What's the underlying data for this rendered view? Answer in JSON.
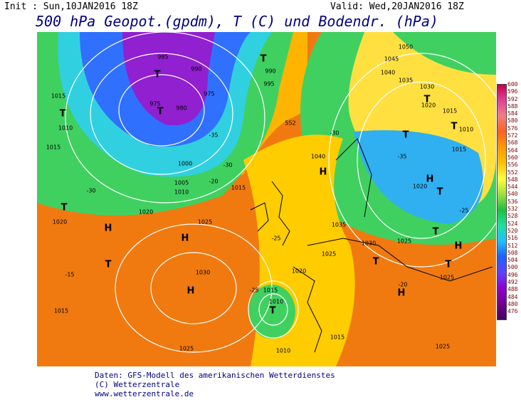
{
  "header": {
    "init": "Init : Sun,10JAN2016 18Z",
    "valid": "Valid: Wed,20JAN2016 18Z",
    "title": "500 hPa Geopot.(gpdm), T (C) und Bodendr. (hPa)"
  },
  "legend": {
    "levels": [
      600,
      596,
      592,
      588,
      584,
      580,
      576,
      572,
      568,
      564,
      560,
      556,
      552,
      548,
      544,
      540,
      536,
      532,
      528,
      524,
      520,
      516,
      512,
      508,
      504,
      500,
      496,
      492,
      488,
      484,
      480,
      476
    ]
  },
  "map": {
    "labels": [
      "1015",
      "T",
      "1010",
      "1015",
      "-30",
      "T",
      "1020",
      "H",
      "1020",
      "985",
      "T",
      "975",
      "T",
      "980",
      "990",
      "T",
      "990",
      "995",
      "975",
      "1000",
      "1005",
      "1010",
      "1015",
      "1025",
      "H",
      "1030",
      "H",
      "-15",
      "T",
      "1015",
      "1025",
      "1015",
      "1010",
      "T",
      "-25",
      "1010",
      "1020",
      "1025",
      "1035",
      "1030",
      "1025",
      "H",
      "1040",
      "T",
      "H",
      "-20",
      "T",
      "1025",
      "1015",
      "1025",
      "1045",
      "1050",
      "1040",
      "1035",
      "1030",
      "T",
      "1020",
      "1015",
      "T",
      "1010",
      "1015",
      "T",
      "-35",
      "H",
      "1020",
      "T",
      "-25",
      "T",
      "H",
      "-30",
      "552",
      "-20",
      "-35",
      "-30",
      "-25"
    ]
  },
  "footer": {
    "lines": [
      "Daten: GFS-Modell des amerikanischen Wetterdienstes",
      "(C) Wetterzentrale",
      "www.wetterzentrale.de"
    ]
  }
}
